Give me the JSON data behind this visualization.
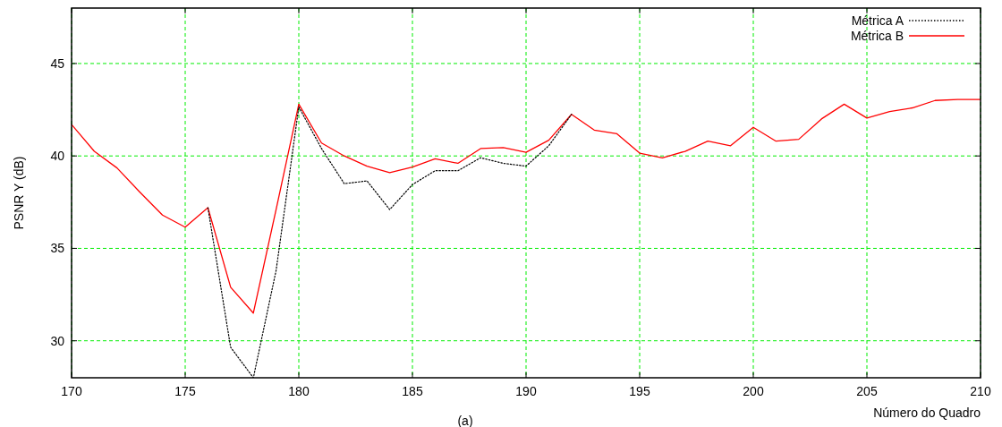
{
  "chart_data": {
    "type": "line",
    "xlabel": "Número do Quadro",
    "ylabel": "PSNR Y (dB)",
    "x": [
      170,
      171,
      172,
      173,
      174,
      175,
      176,
      177,
      178,
      179,
      180,
      181,
      182,
      183,
      184,
      185,
      186,
      187,
      188,
      189,
      190,
      191,
      192,
      193,
      194,
      195,
      196,
      197,
      198,
      199,
      200,
      201,
      202,
      203,
      204,
      205,
      206,
      207,
      208,
      209,
      210
    ],
    "series": [
      {
        "name": "Métrica A",
        "color": "#000000",
        "line_style": "dotted",
        "values": [
          null,
          null,
          null,
          null,
          null,
          null,
          37.2,
          29.65,
          28.0,
          33.8,
          42.65,
          40.4,
          38.5,
          38.65,
          37.1,
          38.45,
          39.2,
          39.2,
          39.9,
          39.6,
          39.45,
          40.55,
          42.25,
          null,
          null,
          null,
          null,
          null,
          null,
          null,
          null,
          null,
          null,
          null,
          null,
          null,
          null,
          null,
          null,
          null,
          null
        ]
      },
      {
        "name": "Métrica B",
        "color": "#ff0000",
        "line_style": "solid",
        "values": [
          41.7,
          40.25,
          39.35,
          38.05,
          36.8,
          36.15,
          37.2,
          32.9,
          31.5,
          37.1,
          42.8,
          40.7,
          40.0,
          39.45,
          39.1,
          39.4,
          39.85,
          39.6,
          40.4,
          40.45,
          40.2,
          40.85,
          42.25,
          41.4,
          41.2,
          40.15,
          39.9,
          40.25,
          40.8,
          40.55,
          41.55,
          40.8,
          40.9,
          42.0,
          42.8,
          42.05,
          42.4,
          42.6,
          43.0,
          43.05,
          43.05
        ]
      }
    ],
    "xlim": [
      170,
      210
    ],
    "xticks": [
      170,
      175,
      180,
      185,
      190,
      195,
      200,
      205,
      210
    ],
    "ylim": [
      28,
      48
    ],
    "yticks": [
      30,
      35,
      40,
      45
    ],
    "grid": true,
    "legend": "top right",
    "marker": "none",
    "annotations": [
      "(a)"
    ]
  }
}
